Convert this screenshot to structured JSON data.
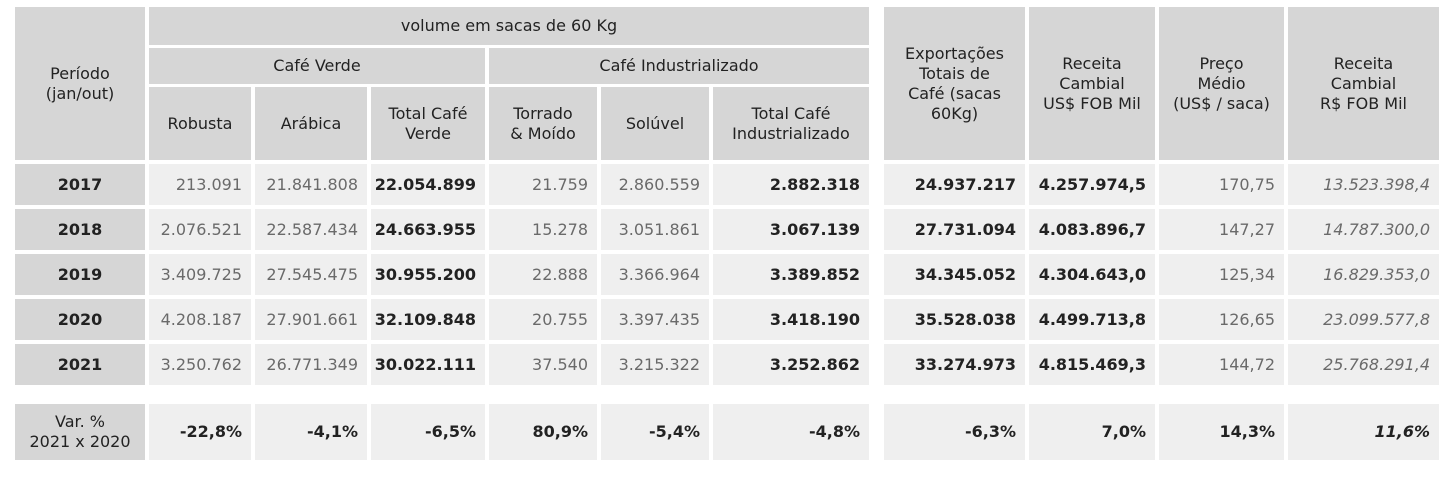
{
  "header": {
    "periodo": "Período\n(jan/out)",
    "volume": "volume em sacas de 60 Kg",
    "cafe_verde": "Café Verde",
    "cafe_industrializado": "Café Industrializado",
    "robusta": "Robusta",
    "arabica": "Arábica",
    "total_verde": "Total Café\nVerde",
    "torrado": "Torrado\n& Moído",
    "soluvel": "Solúvel",
    "total_ind": "Total Café\nIndustrializado",
    "exportacoes": "Exportações\nTotais de\nCafé (sacas\n60Kg)",
    "receita_usd": "Receita\nCambial\nUS$ FOB Mil",
    "preco": "Preço\nMédio\n(US$ / saca)",
    "receita_brl": "Receita\nCambial\nR$ FOB Mil"
  },
  "rows": [
    {
      "year": "2017",
      "robusta": "213.091",
      "arabica": "21.841.808",
      "total_verde": "22.054.899",
      "torrado": "21.759",
      "soluvel": "2.860.559",
      "total_ind": "2.882.318",
      "exportacoes": "24.937.217",
      "receita_usd": "4.257.974,5",
      "preco": "170,75",
      "receita_brl": "13.523.398,4"
    },
    {
      "year": "2018",
      "robusta": "2.076.521",
      "arabica": "22.587.434",
      "total_verde": "24.663.955",
      "torrado": "15.278",
      "soluvel": "3.051.861",
      "total_ind": "3.067.139",
      "exportacoes": "27.731.094",
      "receita_usd": "4.083.896,7",
      "preco": "147,27",
      "receita_brl": "14.787.300,0"
    },
    {
      "year": "2019",
      "robusta": "3.409.725",
      "arabica": "27.545.475",
      "total_verde": "30.955.200",
      "torrado": "22.888",
      "soluvel": "3.366.964",
      "total_ind": "3.389.852",
      "exportacoes": "34.345.052",
      "receita_usd": "4.304.643,0",
      "preco": "125,34",
      "receita_brl": "16.829.353,0"
    },
    {
      "year": "2020",
      "robusta": "4.208.187",
      "arabica": "27.901.661",
      "total_verde": "32.109.848",
      "torrado": "20.755",
      "soluvel": "3.397.435",
      "total_ind": "3.418.190",
      "exportacoes": "35.528.038",
      "receita_usd": "4.499.713,8",
      "preco": "126,65",
      "receita_brl": "23.099.577,8"
    },
    {
      "year": "2021",
      "robusta": "3.250.762",
      "arabica": "26.771.349",
      "total_verde": "30.022.111",
      "torrado": "37.540",
      "soluvel": "3.215.322",
      "total_ind": "3.252.862",
      "exportacoes": "33.274.973",
      "receita_usd": "4.815.469,3",
      "preco": "144,72",
      "receita_brl": "25.768.291,4"
    }
  ],
  "variation": {
    "label": "Var. %\n2021 x 2020",
    "robusta": "-22,8%",
    "arabica": "-4,1%",
    "total_verde": "-6,5%",
    "torrado": "80,9%",
    "soluvel": "-5,4%",
    "total_ind": "-4,8%",
    "exportacoes": "-6,3%",
    "receita_usd": "7,0%",
    "preco": "14,3%",
    "receita_brl": "11,6%"
  }
}
